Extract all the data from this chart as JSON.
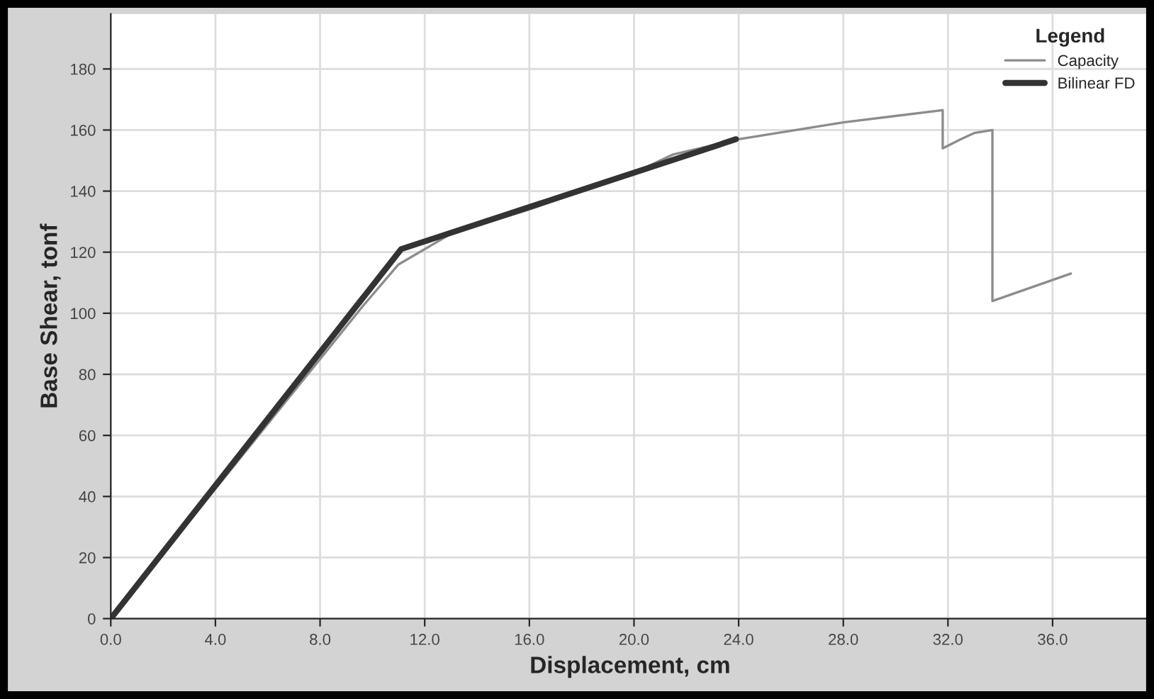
{
  "chart_data": {
    "type": "line",
    "xlabel": "Displacement, cm",
    "ylabel": "Base Shear, tonf",
    "legend_title": "Legend",
    "legend": "top right",
    "grid": true,
    "xlim": [
      0,
      39.7
    ],
    "ylim": [
      0,
      198
    ],
    "xticks": [
      {
        "value": 0,
        "label": "0.0"
      },
      {
        "value": 4,
        "label": "4.0"
      },
      {
        "value": 8,
        "label": "8.0"
      },
      {
        "value": 12,
        "label": "12.0"
      },
      {
        "value": 16,
        "label": "16.0"
      },
      {
        "value": 20,
        "label": "20.0"
      },
      {
        "value": 24,
        "label": "24.0"
      },
      {
        "value": 28,
        "label": "28.0"
      },
      {
        "value": 32,
        "label": "32.0"
      },
      {
        "value": 36,
        "label": "36.0"
      }
    ],
    "yticks": [
      0,
      20,
      40,
      60,
      80,
      100,
      120,
      140,
      160,
      180
    ],
    "series": [
      {
        "name": "Capacity",
        "color": "#8c8c8c",
        "x": [
          0,
          9.6,
          11.0,
          13.0,
          16.0,
          20.0,
          21.5,
          24.0,
          28.0,
          31.8,
          31.8,
          32.5,
          33.0,
          33.7,
          33.7,
          36.7
        ],
        "values": [
          0,
          102,
          116,
          126,
          134,
          146,
          152,
          157,
          162.5,
          166.5,
          154,
          157,
          159,
          160,
          104,
          113
        ]
      },
      {
        "name": "Bilinear FD",
        "color": "#333333",
        "x": [
          0,
          11.1,
          23.9
        ],
        "values": [
          0,
          121,
          157
        ]
      }
    ]
  }
}
